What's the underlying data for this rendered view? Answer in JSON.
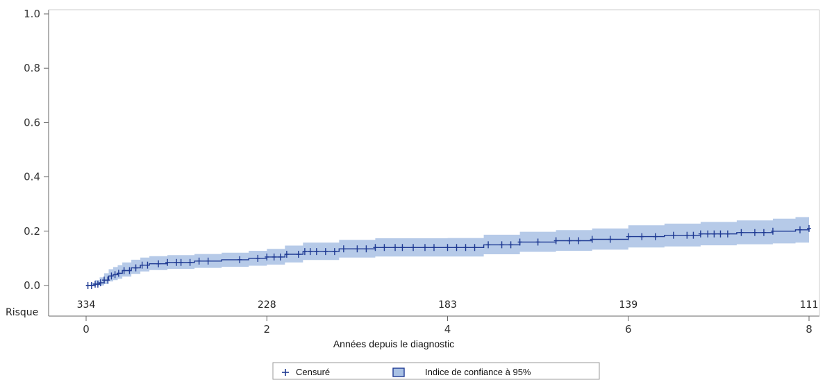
{
  "chart_data": {
    "type": "line",
    "title": "",
    "xlabel": "Années depuis le diagnostic",
    "ylabel": "",
    "xlim": [
      0,
      8
    ],
    "ylim": [
      0,
      1.0
    ],
    "x_ticks": [
      "0",
      "2",
      "4",
      "6",
      "8"
    ],
    "y_ticks": [
      "0.0",
      "0.2",
      "0.4",
      "0.6",
      "0.8",
      "1.0"
    ],
    "grid": false,
    "colors": {
      "line": "#1f3a93",
      "band": "#a9c1e4"
    },
    "series": [
      {
        "x": [
          0,
          0.05,
          0.1,
          0.15,
          0.2,
          0.25,
          0.3,
          0.35,
          0.4,
          0.5,
          0.6,
          0.7,
          0.9,
          1.2,
          1.5,
          1.8,
          2.0,
          2.2,
          2.4,
          2.8,
          3.2,
          3.6,
          4.0,
          4.4,
          4.8,
          5.2,
          5.6,
          6.0,
          6.4,
          6.8,
          7.2,
          7.6,
          7.85,
          8.0
        ],
        "y": [
          0.0,
          0.0,
          0.005,
          0.01,
          0.02,
          0.035,
          0.04,
          0.045,
          0.055,
          0.065,
          0.075,
          0.08,
          0.085,
          0.09,
          0.095,
          0.1,
          0.105,
          0.115,
          0.125,
          0.135,
          0.14,
          0.14,
          0.14,
          0.15,
          0.16,
          0.165,
          0.17,
          0.18,
          0.185,
          0.19,
          0.195,
          0.2,
          0.205,
          0.21
        ],
        "ci_lower": [
          0.0,
          0.0,
          0.0,
          0.0,
          0.005,
          0.015,
          0.02,
          0.025,
          0.033,
          0.043,
          0.052,
          0.057,
          0.061,
          0.065,
          0.069,
          0.073,
          0.077,
          0.085,
          0.094,
          0.103,
          0.107,
          0.107,
          0.107,
          0.115,
          0.124,
          0.128,
          0.132,
          0.14,
          0.144,
          0.148,
          0.152,
          0.155,
          0.158,
          0.16
        ],
        "ci_upper": [
          0.0,
          0.01,
          0.02,
          0.03,
          0.045,
          0.06,
          0.068,
          0.075,
          0.085,
          0.095,
          0.103,
          0.108,
          0.112,
          0.116,
          0.121,
          0.128,
          0.135,
          0.147,
          0.158,
          0.168,
          0.174,
          0.174,
          0.175,
          0.187,
          0.198,
          0.204,
          0.21,
          0.222,
          0.228,
          0.234,
          0.24,
          0.246,
          0.252,
          0.262
        ]
      }
    ],
    "censored_x": [
      0.02,
      0.06,
      0.1,
      0.13,
      0.16,
      0.2,
      0.24,
      0.28,
      0.32,
      0.36,
      0.42,
      0.48,
      0.55,
      0.62,
      0.68,
      0.8,
      0.9,
      1.0,
      1.05,
      1.15,
      1.25,
      1.35,
      1.7,
      1.9,
      2.0,
      2.08,
      2.15,
      2.22,
      2.35,
      2.42,
      2.48,
      2.55,
      2.65,
      2.75,
      2.85,
      3.0,
      3.1,
      3.2,
      3.3,
      3.42,
      3.5,
      3.62,
      3.75,
      3.85,
      4.0,
      4.1,
      4.2,
      4.3,
      4.45,
      4.6,
      4.7,
      4.8,
      5.0,
      5.2,
      5.35,
      5.45,
      5.6,
      5.8,
      6.0,
      6.15,
      6.3,
      6.5,
      6.65,
      6.72,
      6.8,
      6.88,
      6.95,
      7.02,
      7.1,
      7.25,
      7.4,
      7.5,
      7.6,
      7.9,
      8.0
    ],
    "risk_table": {
      "label": "Risque",
      "at_x": [
        0,
        2,
        4,
        6,
        8
      ],
      "counts": [
        "334",
        "228",
        "183",
        "139",
        "111"
      ]
    },
    "legend": {
      "position": "bottom",
      "items": [
        "Censuré",
        "Indice de confiance à 95%"
      ]
    }
  }
}
